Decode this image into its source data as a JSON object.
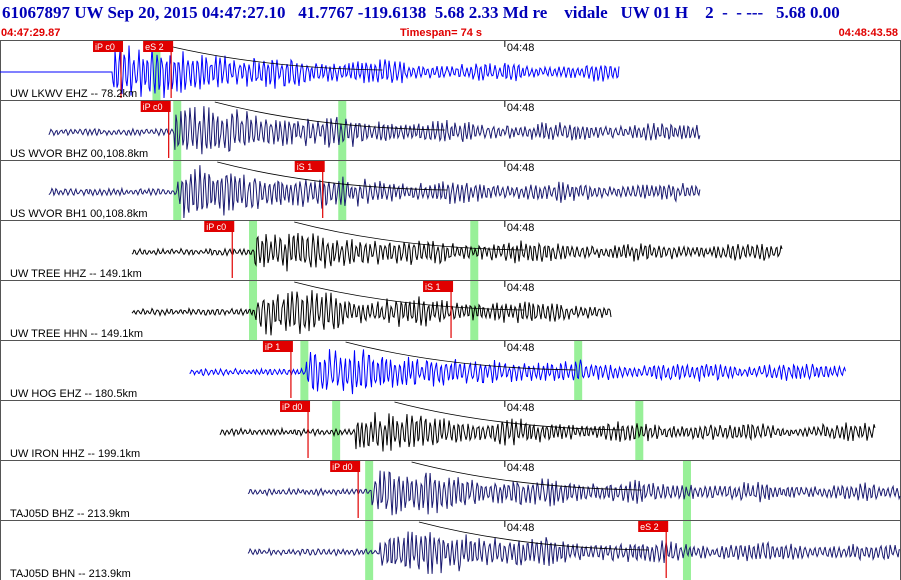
{
  "header": {
    "title": "61067897 UW Sep 20, 2015 04:47:27.10   41.7767 -119.6138  5.68 2.33 Md re    vidale   UW 01 H    2  -  - ---   5.68 0.00",
    "start_time": "04:47:29.87",
    "timespan": "Timespan=  74 s",
    "end_time": "04:48:43.58"
  },
  "colors": {
    "blue_trace": "#0000ff",
    "navy_trace": "#1a1a70",
    "black_trace": "#000000",
    "pick": "#e00000",
    "window": "#98f098",
    "border": "#555555"
  },
  "chart_data": {
    "type": "line",
    "x_range": [
      "04:47:29.87",
      "04:48:43.58"
    ],
    "time_marker": "04:48",
    "traces": [
      {
        "label": "UW LKWV EHZ -- 78.2km",
        "color": "blue",
        "picks": [
          {
            "label": "iP c0",
            "t": 9.9
          },
          {
            "label": "eS 2",
            "t": 14.0
          }
        ],
        "windows": [
          12.8
        ],
        "start": 0.0,
        "end": 50.7,
        "onset": 9.2,
        "flat_pre": true,
        "amp": 0.9
      },
      {
        "label": "US WVOR BHZ 00,108.8km",
        "color": "navy",
        "picks": [
          {
            "label": "iP c0",
            "t": 13.8
          }
        ],
        "windows": [
          14.5,
          28.0
        ],
        "start": 4.0,
        "end": 57.3,
        "onset": 14.3,
        "amp": 0.8
      },
      {
        "label": "US WVOR BH1 00,108.8km",
        "color": "navy",
        "picks": [
          {
            "label": "iS 1",
            "t": 26.4
          }
        ],
        "windows": [
          14.5,
          28.0
        ],
        "start": 4.0,
        "end": 57.3,
        "onset": 14.5,
        "amp": 0.85
      },
      {
        "label": "UW TREE HHZ -- 149.1km",
        "color": "black",
        "picks": [
          {
            "label": "iP c0",
            "t": 19.0
          }
        ],
        "windows": [
          20.7,
          38.8
        ],
        "start": 10.8,
        "end": 64.0,
        "onset": 20.8,
        "amp": 0.6
      },
      {
        "label": "UW TREE HHN -- 149.1km",
        "color": "black",
        "picks": [
          {
            "label": "iS 1",
            "t": 36.9
          }
        ],
        "windows": [
          20.7,
          38.8
        ],
        "start": 10.8,
        "end": 50.0,
        "onset": 20.8,
        "amp": 0.7
      },
      {
        "label": "UW HOG EHZ -- 180.5km",
        "color": "blue",
        "picks": [
          {
            "label": "iP 1",
            "t": 23.8
          }
        ],
        "windows": [
          24.9,
          47.3
        ],
        "start": 15.5,
        "end": 69.2,
        "onset": 25.0,
        "amp": 0.75
      },
      {
        "label": "UW IRON HHZ -- 199.1km",
        "color": "black",
        "picks": [
          {
            "label": "iP d0",
            "t": 25.2
          }
        ],
        "windows": [
          27.5,
          52.3
        ],
        "start": 18.0,
        "end": 71.6,
        "onset": 29.0,
        "amp": 0.55
      },
      {
        "label": "TAJ05D BHZ -- 213.9km",
        "color": "navy",
        "picks": [
          {
            "label": "iP d0",
            "t": 29.3
          }
        ],
        "windows": [
          30.2,
          56.2
        ],
        "start": 20.3,
        "end": 73.7,
        "onset": 30.4,
        "amp": 0.7
      },
      {
        "label": "TAJ05D BHN -- 213.9km",
        "color": "navy",
        "picks": [
          {
            "label": "eS 2",
            "t": 54.5
          }
        ],
        "windows": [
          30.2,
          56.2
        ],
        "start": 20.3,
        "end": 73.7,
        "onset": 31.0,
        "amp": 0.75
      }
    ]
  }
}
